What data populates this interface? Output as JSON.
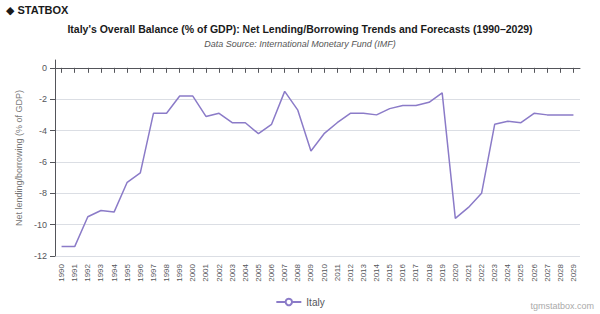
{
  "chart_data": {
    "type": "line",
    "title": "Italy's Overall Balance (% of GDP): Net Lending/Borrowing Trends and Forecasts (1990–2029)",
    "subtitle": "Data Source: International Monetary Fund (IMF)",
    "y_label": "Net lending/borrowing (% of GDP)",
    "annotations": [
      "◆ STATBOX",
      "tgmstatbox.com"
    ],
    "x": [
      1990,
      1991,
      1992,
      1993,
      1994,
      1995,
      1996,
      1997,
      1998,
      1999,
      2000,
      2001,
      2002,
      2003,
      2004,
      2005,
      2006,
      2007,
      2008,
      2009,
      2010,
      2011,
      2012,
      2013,
      2014,
      2015,
      2016,
      2017,
      2018,
      2019,
      2020,
      2021,
      2022,
      2023,
      2024,
      2025,
      2026,
      2027,
      2028,
      2029
    ],
    "series": [
      {
        "name": "Italy",
        "color": "#8B7BC8",
        "values": [
          -11.4,
          -11.4,
          -9.5,
          -9.1,
          -9.2,
          -7.3,
          -6.7,
          -2.9,
          -2.9,
          -1.8,
          -1.8,
          -3.1,
          -2.9,
          -3.5,
          -3.5,
          -4.2,
          -3.6,
          -1.5,
          -2.7,
          -5.3,
          -4.2,
          -3.5,
          -2.9,
          -2.9,
          -3.0,
          -2.6,
          -2.4,
          -2.4,
          -2.2,
          -1.6,
          -9.6,
          -8.9,
          -8.0,
          -3.6,
          -3.4,
          -3.5,
          -2.9,
          -3.0,
          -3.0,
          -3.0
        ]
      }
    ],
    "xlim": [
      1989.5,
      2029.5
    ],
    "xticks": [
      1990,
      1991,
      1992,
      1993,
      1994,
      1995,
      1996,
      1997,
      1998,
      1999,
      2000,
      2001,
      2002,
      2003,
      2004,
      2005,
      2006,
      2007,
      2008,
      2009,
      2010,
      2011,
      2012,
      2013,
      2014,
      2015,
      2016,
      2017,
      2018,
      2019,
      2020,
      2021,
      2022,
      2023,
      2024,
      2025,
      2026,
      2027,
      2028,
      2029
    ],
    "ylim": [
      -12,
      0.5
    ],
    "yticks": [
      0,
      -2,
      -4,
      -6,
      -8,
      -10,
      -12
    ],
    "grid": true,
    "legend": "bottom"
  }
}
